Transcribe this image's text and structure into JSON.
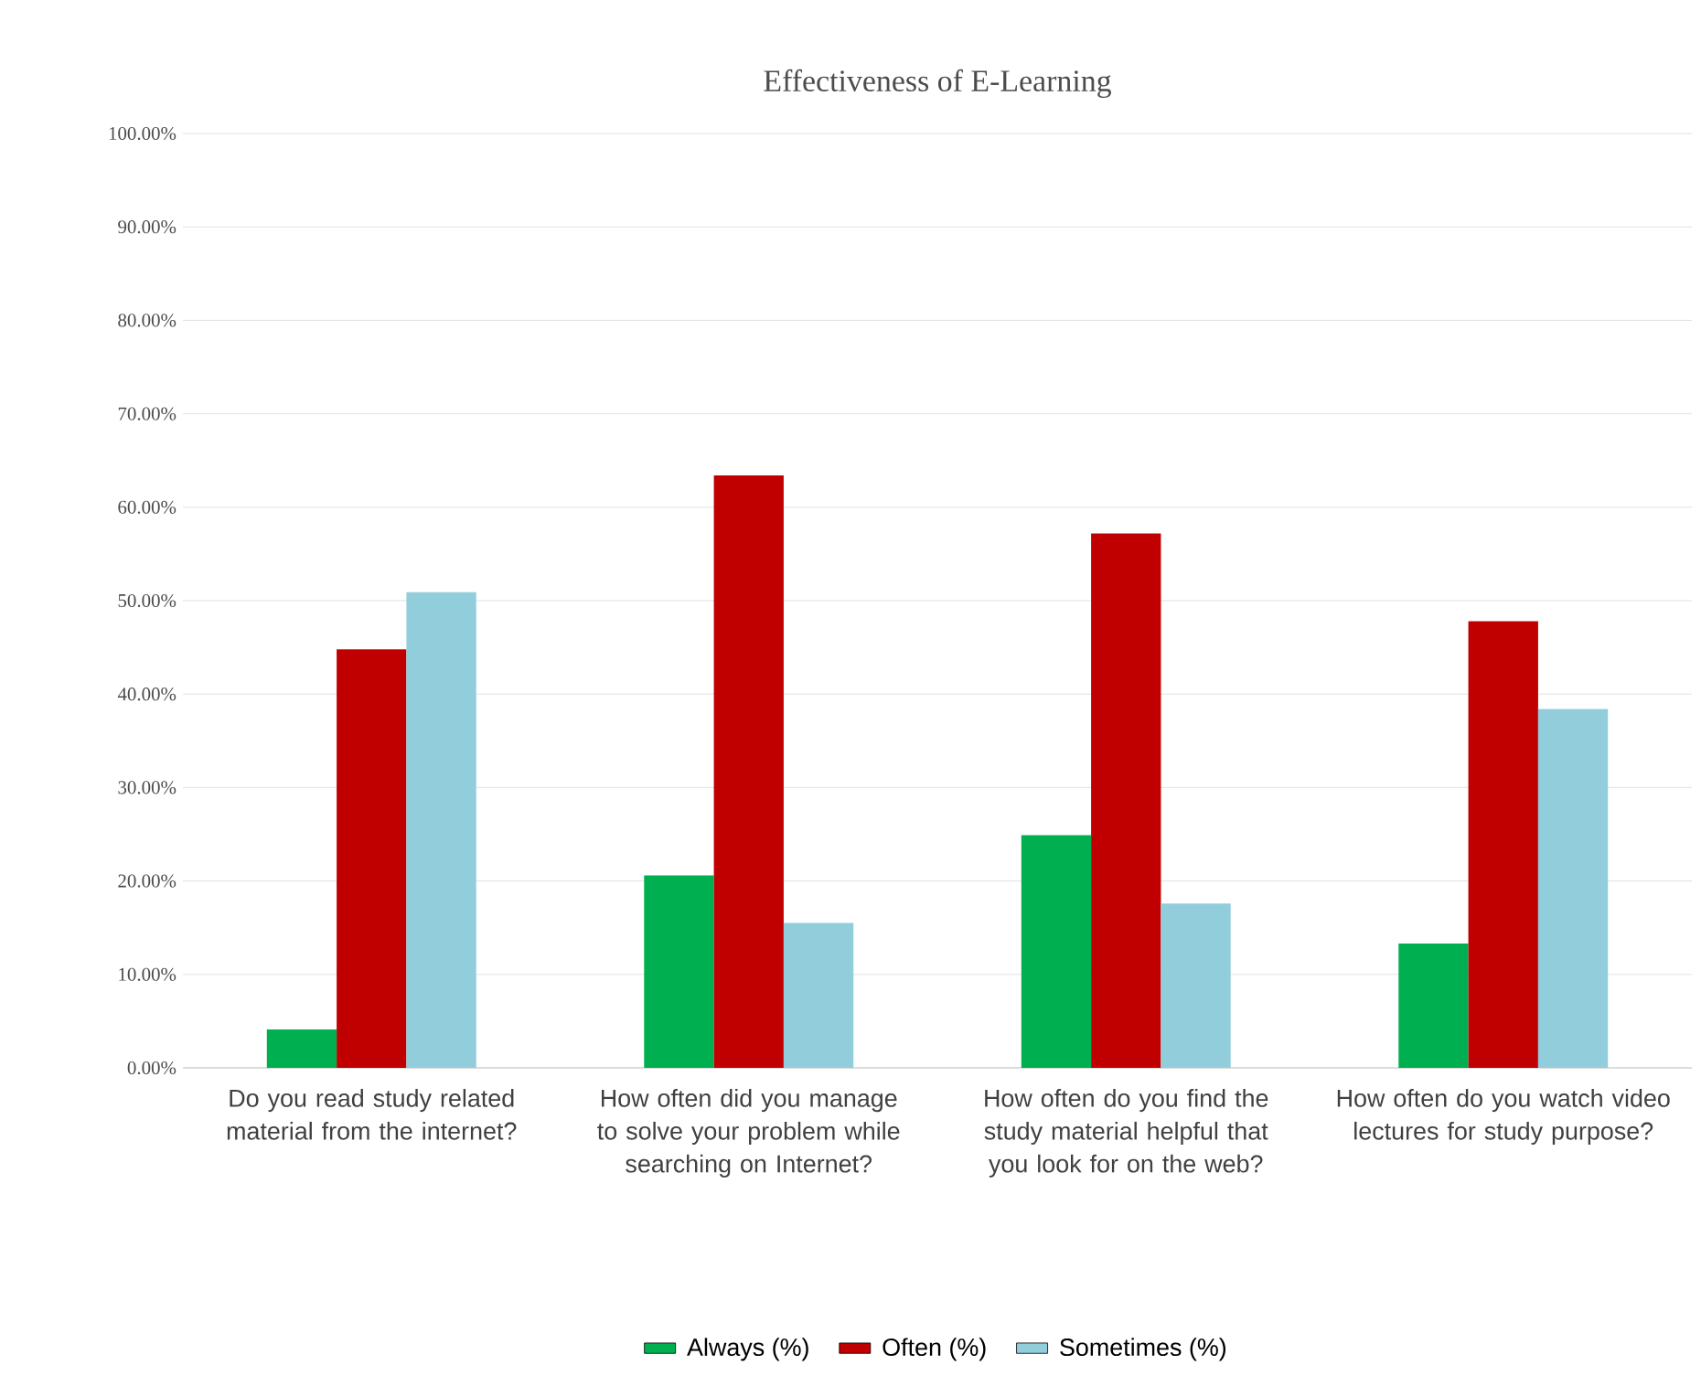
{
  "chart_data": {
    "type": "bar",
    "title": "Effectiveness of E-Learning",
    "categories": [
      "Do you read study related material from the internet?",
      "How often did you manage to solve your problem while searching on Internet?",
      "How often do you find the study material helpful that you look for on the web?",
      "How often do you watch video lectures for study purpose?"
    ],
    "series": [
      {
        "name": "Always (%)",
        "color": "#00b050",
        "values": [
          4.1,
          20.6,
          24.9,
          13.3
        ]
      },
      {
        "name": "Often (%)",
        "color": "#c00000",
        "values": [
          44.8,
          63.4,
          57.2,
          47.8
        ]
      },
      {
        "name": "Sometimes (%)",
        "color": "#92cddc",
        "values": [
          50.9,
          15.5,
          17.6,
          38.4
        ]
      }
    ],
    "ylim": [
      0,
      100
    ],
    "yticks": [
      {
        "value": 0,
        "label": "0.00%"
      },
      {
        "value": 10,
        "label": "10.00%"
      },
      {
        "value": 20,
        "label": "20.00%"
      },
      {
        "value": 30,
        "label": "30.00%"
      },
      {
        "value": 40,
        "label": "40.00%"
      },
      {
        "value": 50,
        "label": "50.00%"
      },
      {
        "value": 60,
        "label": "60.00%"
      },
      {
        "value": 70,
        "label": "70.00%"
      },
      {
        "value": 80,
        "label": "80.00%"
      },
      {
        "value": 90,
        "label": "90.00%"
      },
      {
        "value": 100,
        "label": "100.00%"
      }
    ],
    "grid": "y",
    "legend": "bottom"
  }
}
